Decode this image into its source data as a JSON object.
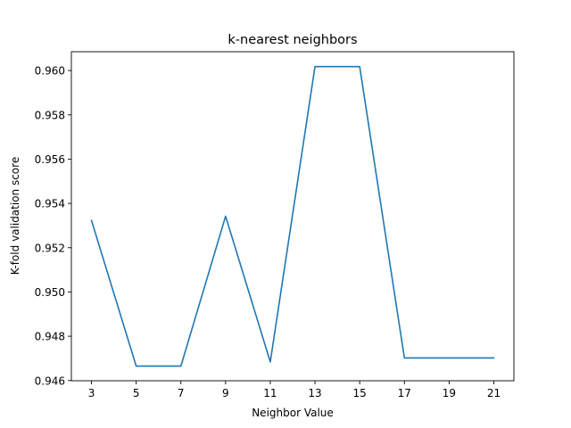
{
  "chart_data": {
    "type": "line",
    "title": "k-nearest neighbors",
    "xlabel": "Neighbor Value",
    "ylabel": "K-fold validation score",
    "x": [
      3,
      5,
      7,
      9,
      11,
      13,
      15,
      17,
      19,
      21
    ],
    "series": [
      {
        "values": [
          0.95323,
          0.94665,
          0.94665,
          0.95342,
          0.94684,
          0.96018,
          0.96018,
          0.94702,
          0.94702,
          0.94702
        ]
      }
    ],
    "xticks": [
      "3",
      "5",
      "7",
      "9",
      "11",
      "13",
      "15",
      "17",
      "19",
      "21"
    ],
    "yticks": [
      "0.946",
      "0.948",
      "0.950",
      "0.952",
      "0.954",
      "0.956",
      "0.958",
      "0.960"
    ],
    "xlim": [
      2.1,
      21.9
    ],
    "ylim": [
      0.94599,
      0.96085
    ],
    "grid": false,
    "line_color": "#1f77b4"
  }
}
